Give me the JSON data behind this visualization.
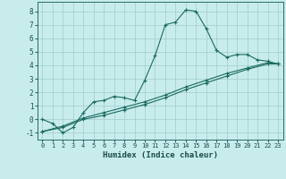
{
  "xlabel": "Humidex (Indice chaleur)",
  "xlim": [
    -0.5,
    23.5
  ],
  "ylim": [
    -1.5,
    8.7
  ],
  "yticks": [
    -1,
    0,
    1,
    2,
    3,
    4,
    5,
    6,
    7,
    8
  ],
  "xticks": [
    0,
    1,
    2,
    3,
    4,
    5,
    6,
    7,
    8,
    9,
    10,
    11,
    12,
    13,
    14,
    15,
    16,
    17,
    18,
    19,
    20,
    21,
    22,
    23
  ],
  "bg_color": "#c8ecec",
  "line_color": "#1a6a60",
  "grid_color": "#a0cccc",
  "curve1_x": [
    0,
    1,
    2,
    3,
    4,
    5,
    6,
    7,
    8,
    9,
    10,
    11,
    12,
    13,
    14,
    15,
    16,
    17,
    18,
    19,
    20,
    21,
    22,
    23
  ],
  "curve1_y": [
    0.0,
    -0.3,
    -1.0,
    -0.6,
    0.5,
    1.3,
    1.4,
    1.7,
    1.6,
    1.4,
    2.9,
    4.7,
    7.0,
    7.2,
    8.1,
    8.0,
    6.7,
    5.1,
    4.6,
    4.8,
    4.8,
    4.4,
    4.3,
    4.1
  ],
  "curve2_x": [
    0,
    2,
    4,
    6,
    8,
    10,
    12,
    14,
    16,
    18,
    20,
    22,
    23
  ],
  "curve2_y": [
    -0.9,
    -0.5,
    0.1,
    0.5,
    0.9,
    1.3,
    1.8,
    2.4,
    2.9,
    3.4,
    3.8,
    4.2,
    4.1
  ],
  "curve3_x": [
    0,
    2,
    4,
    6,
    8,
    10,
    12,
    14,
    16,
    18,
    20,
    22,
    23
  ],
  "curve3_y": [
    -0.9,
    -0.6,
    0.0,
    0.3,
    0.7,
    1.1,
    1.6,
    2.2,
    2.7,
    3.2,
    3.7,
    4.1,
    4.1
  ]
}
